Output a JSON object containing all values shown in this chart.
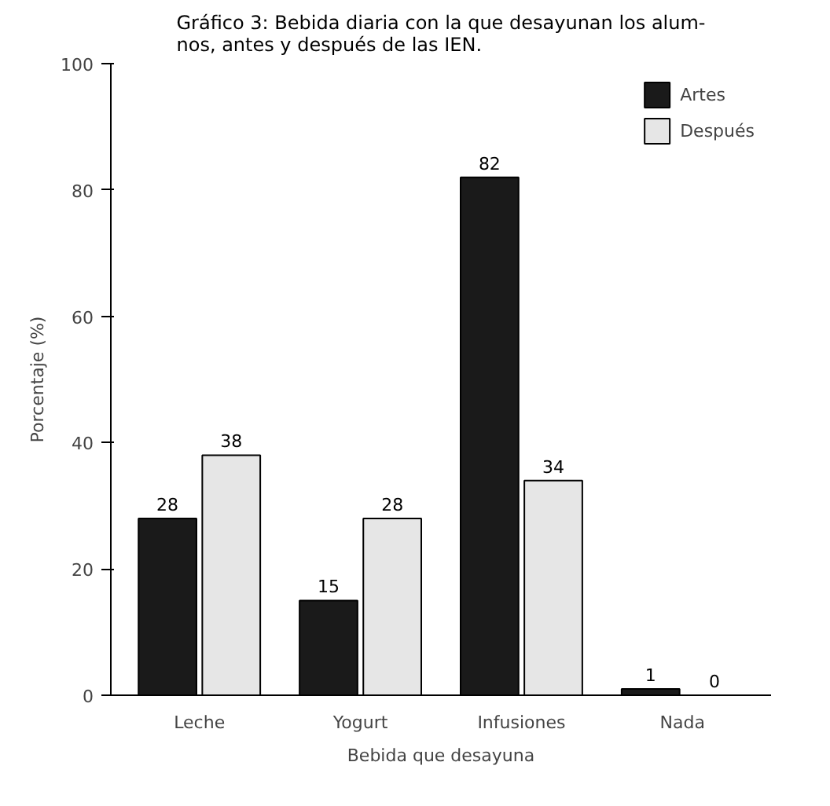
{
  "chart_data": {
    "type": "bar",
    "title": "Gráfico 3: Bebida diaria con la que desayunan los alum-\nnos, antes y después de las IEN.",
    "xlabel": "Bebida que desayuna",
    "ylabel": "Porcentaje (%)",
    "categories": [
      "Leche",
      "Yogurt",
      "Infusiones",
      "Nada"
    ],
    "series": [
      {
        "name": "Artes",
        "color": "#1a1a1a",
        "values": [
          28,
          15,
          82,
          1
        ]
      },
      {
        "name": "Después",
        "color": "#e6e6e6",
        "values": [
          38,
          28,
          34,
          0
        ]
      }
    ],
    "ylim": [
      0,
      100
    ],
    "yticks": [
      0,
      20,
      40,
      60,
      80,
      100
    ],
    "grid": false,
    "legend": "top right",
    "data_labels": true
  }
}
